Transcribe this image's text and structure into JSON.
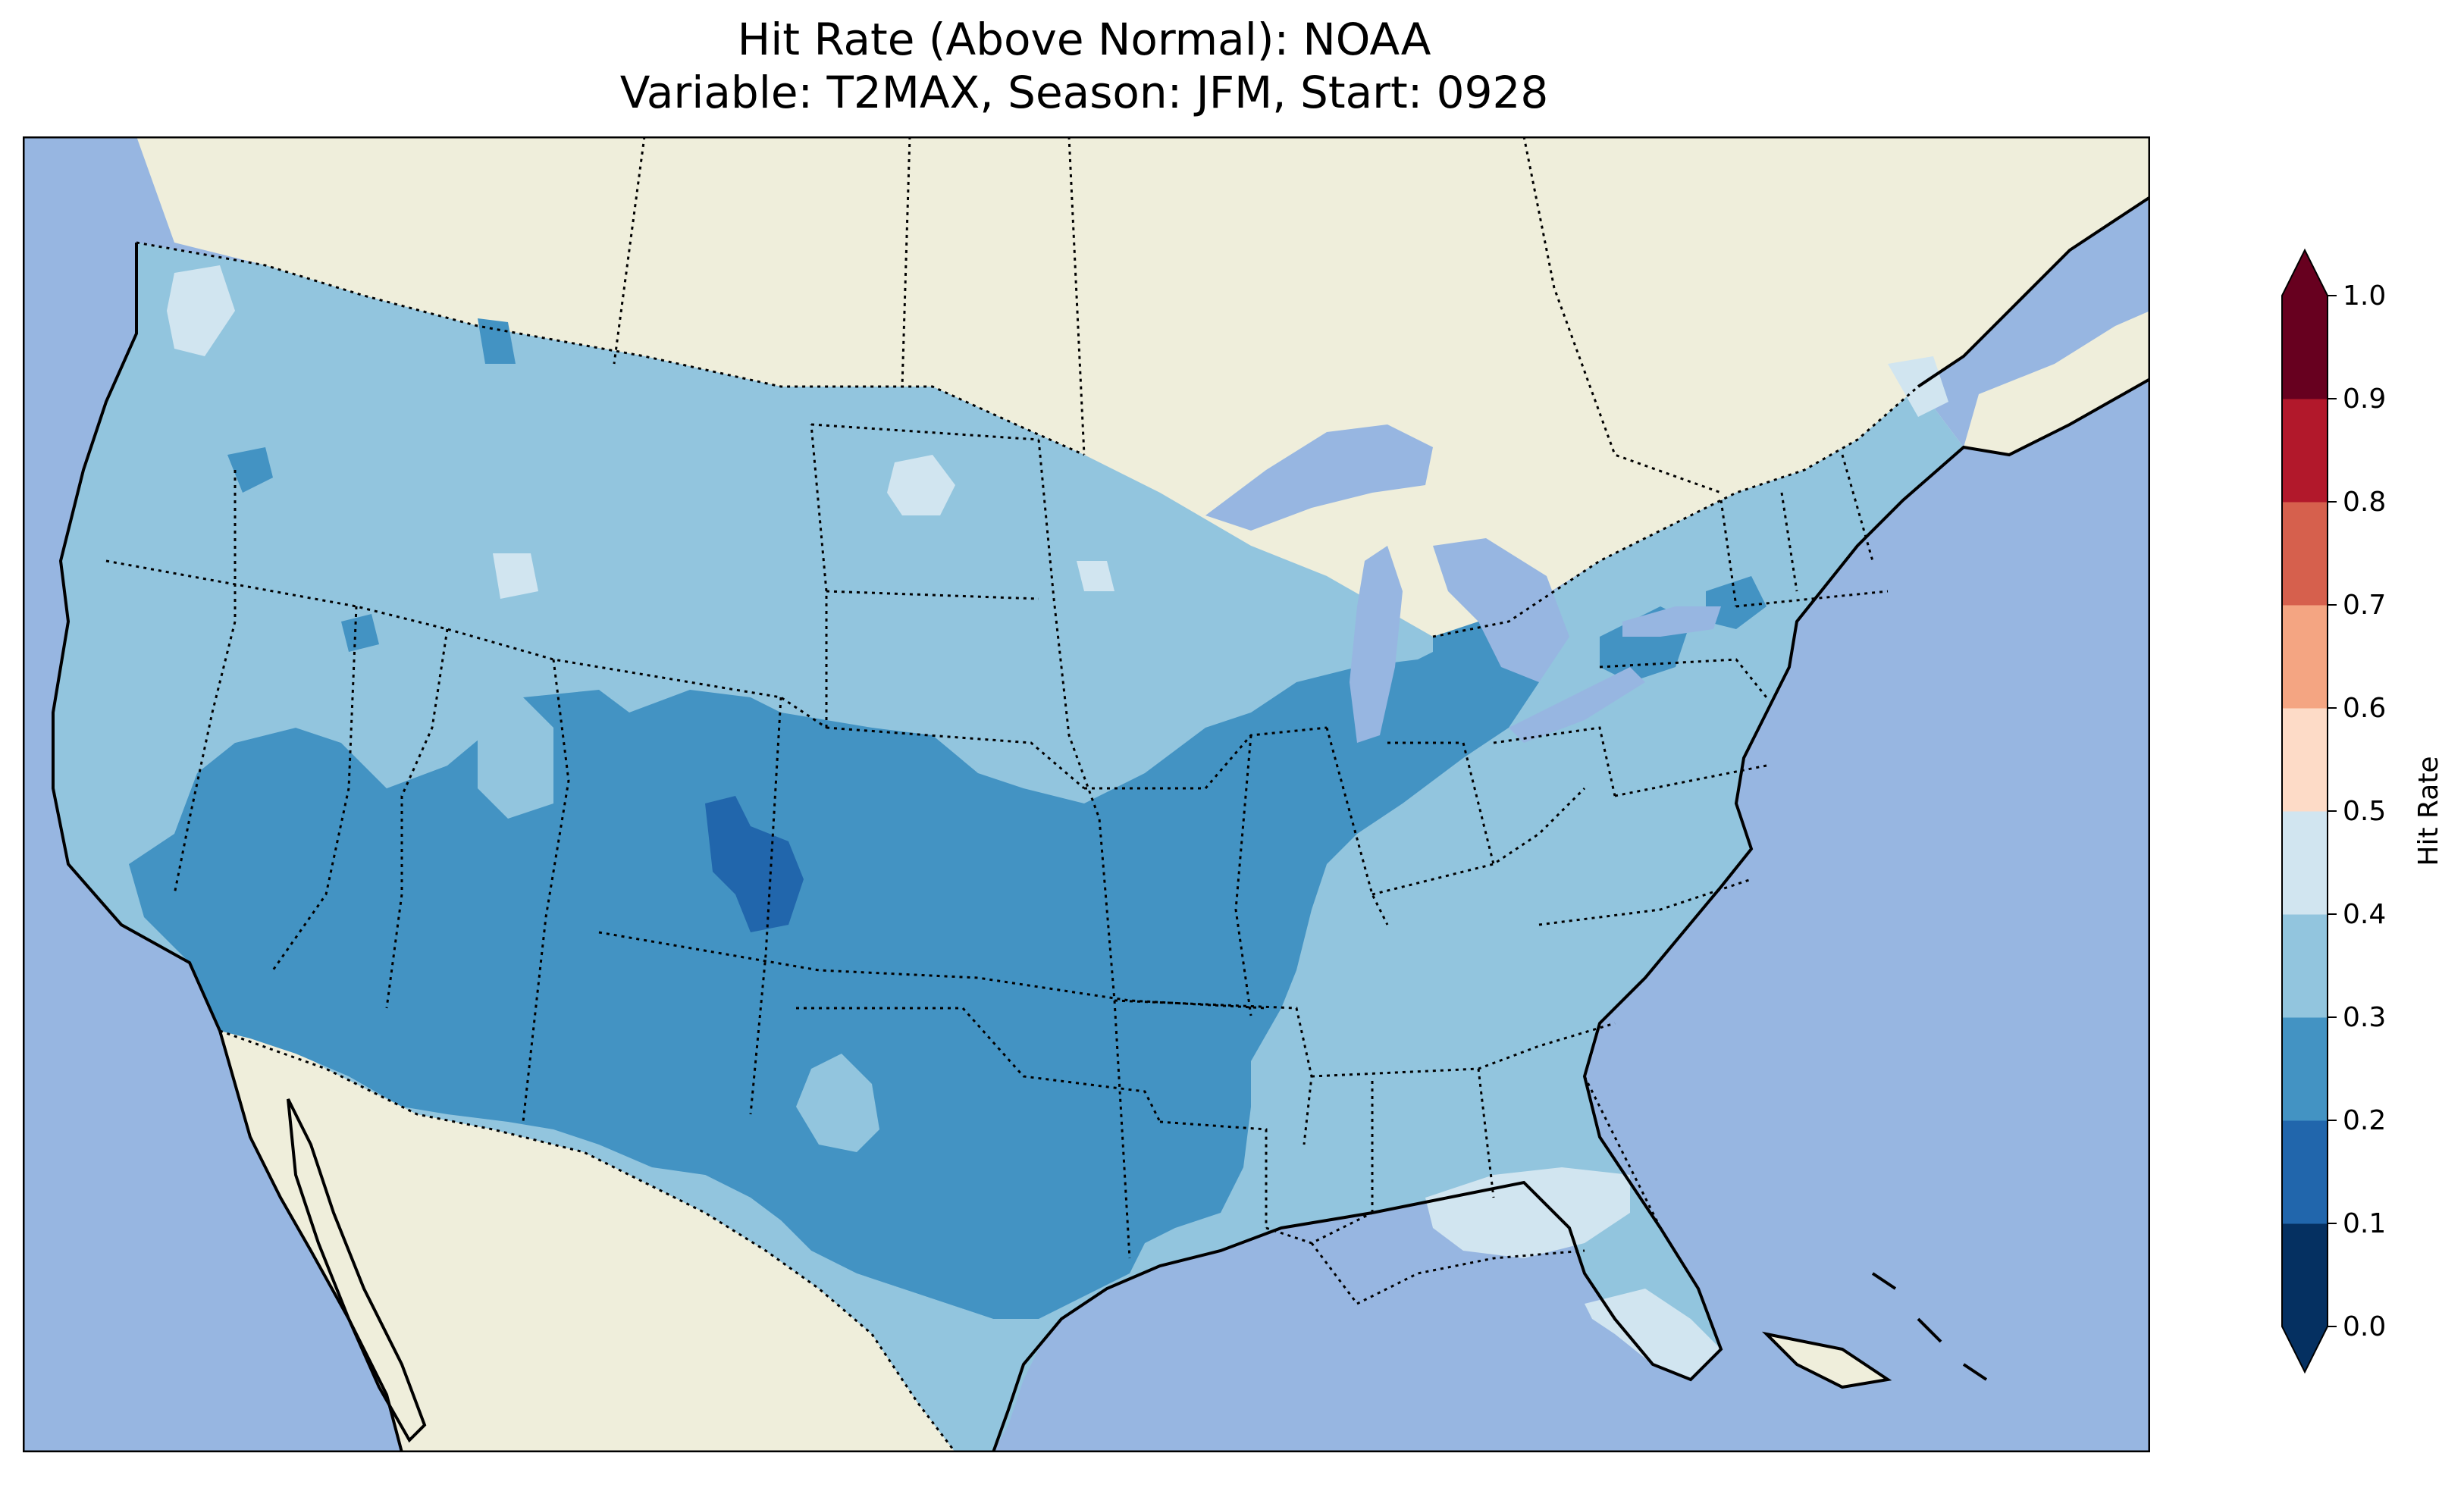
{
  "title": {
    "line1": "Hit Rate (Above Normal): NOAA",
    "line2": "Variable: T2MAX, Season: JFM, Start: 0928"
  },
  "colors": {
    "ocean": "#97b6e1",
    "land": "#efeedb",
    "lakes": "#97b6e1",
    "coast": "#000000",
    "state_border": "#000000"
  },
  "colorbar": {
    "label": "Hit Rate",
    "ticks": [
      "0.0",
      "0.1",
      "0.2",
      "0.3",
      "0.4",
      "0.5",
      "0.6",
      "0.7",
      "0.8",
      "0.9",
      "1.0"
    ],
    "bins": [
      {
        "range": [
          0.0,
          0.1
        ],
        "color": "#053061"
      },
      {
        "range": [
          0.1,
          0.2
        ],
        "color": "#2166ac"
      },
      {
        "range": [
          0.2,
          0.3
        ],
        "color": "#4393c3"
      },
      {
        "range": [
          0.3,
          0.4
        ],
        "color": "#92c5de"
      },
      {
        "range": [
          0.4,
          0.5
        ],
        "color": "#d1e5f0"
      },
      {
        "range": [
          0.5,
          0.6
        ],
        "color": "#fddbc7"
      },
      {
        "range": [
          0.6,
          0.7
        ],
        "color": "#f4a582"
      },
      {
        "range": [
          0.7,
          0.8
        ],
        "color": "#d6604d"
      },
      {
        "range": [
          0.8,
          0.9
        ],
        "color": "#b2182b"
      },
      {
        "range": [
          0.9,
          1.0
        ],
        "color": "#67001f"
      }
    ],
    "extend_min_color": "#053061",
    "extend_max_color": "#67001f"
  },
  "map_data": {
    "domain": "CONUS",
    "variable": "T2MAX",
    "season": "JFM",
    "start": "0928",
    "regions": [
      {
        "name": "west-coast-north",
        "value": 0.35
      },
      {
        "name": "northern-plains",
        "value": 0.35
      },
      {
        "name": "great-basin",
        "value": 0.35
      },
      {
        "name": "southwest",
        "value": 0.25
      },
      {
        "name": "colorado-core",
        "value": 0.15
      },
      {
        "name": "central-plains",
        "value": 0.25
      },
      {
        "name": "texas",
        "value": 0.35
      },
      {
        "name": "lower-mississippi",
        "value": 0.25
      },
      {
        "name": "ohio-valley",
        "value": 0.25
      },
      {
        "name": "southeast",
        "value": 0.35
      },
      {
        "name": "florida-gulf",
        "value": 0.45
      },
      {
        "name": "northeast",
        "value": 0.35
      },
      {
        "name": "pacific-nw-edge",
        "value": 0.45
      }
    ]
  }
}
